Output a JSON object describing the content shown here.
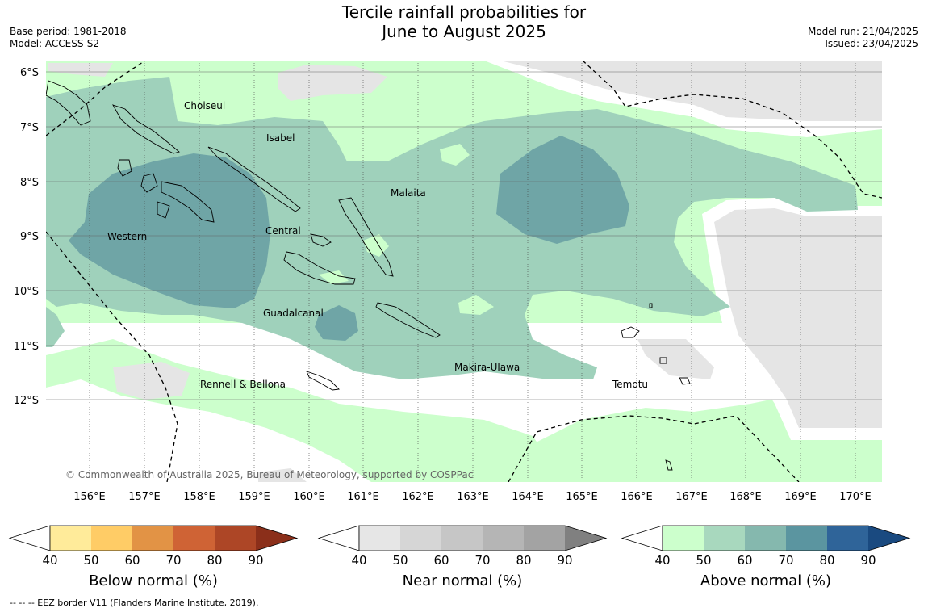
{
  "title": {
    "line1": "Tercile rainfall probabilities for",
    "line2": "June to August 2025"
  },
  "meta": {
    "base_period": "Base period: 1981-2018",
    "model": "Model: ACCESS-S2",
    "model_run": "Model run: 21/04/2025",
    "issued": "Issued: 23/04/2025"
  },
  "map": {
    "lat_labels": [
      "6°S",
      "7°S",
      "8°S",
      "9°S",
      "10°S",
      "11°S",
      "12°S"
    ],
    "lon_labels": [
      "156°E",
      "157°E",
      "158°E",
      "159°E",
      "160°E",
      "161°E",
      "162°E",
      "163°E",
      "164°E",
      "165°E",
      "166°E",
      "167°E",
      "168°E",
      "169°E",
      "170°E"
    ],
    "places": {
      "choiseul": "Choiseul",
      "isabel": "Isabel",
      "malaita": "Malaita",
      "western": "Western",
      "central": "Central",
      "guadalcanal": "Guadalcanal",
      "makira": "Makira-Ulawa",
      "rennell": "Rennell & Bellona",
      "temotu": "Temotu"
    },
    "copyright": "© Commonwealth of Australia 2025, Bureau of Meteorology, supported by COSPPac",
    "colors": {
      "above_50": "#ccffcc",
      "above_60": "#9fd1bb",
      "above_70": "#6fa5a6",
      "near_50": "#e5e5e5",
      "ocean": "#ffffff"
    }
  },
  "colorbars": {
    "ticks": [
      "40",
      "50",
      "60",
      "70",
      "80",
      "90"
    ],
    "below": {
      "label": "Below normal (%)",
      "colors": [
        "#ffeb9a",
        "#ffcc66",
        "#e29345",
        "#cf6335",
        "#ad4626",
        "#8b2f1a"
      ]
    },
    "near": {
      "label": "Near normal (%)",
      "colors": [
        "#e6e6e6",
        "#d6d6d6",
        "#c6c6c6",
        "#b5b5b5",
        "#a3a3a3",
        "#808080"
      ]
    },
    "above": {
      "label": "Above normal (%)",
      "colors": [
        "#ccffcc",
        "#a8d8be",
        "#85b8ae",
        "#5b95a0",
        "#2f6499",
        "#1a4a80"
      ]
    }
  },
  "footnote": "-- -- -- EEZ border V11 (Flanders Marine Institute, 2019)."
}
